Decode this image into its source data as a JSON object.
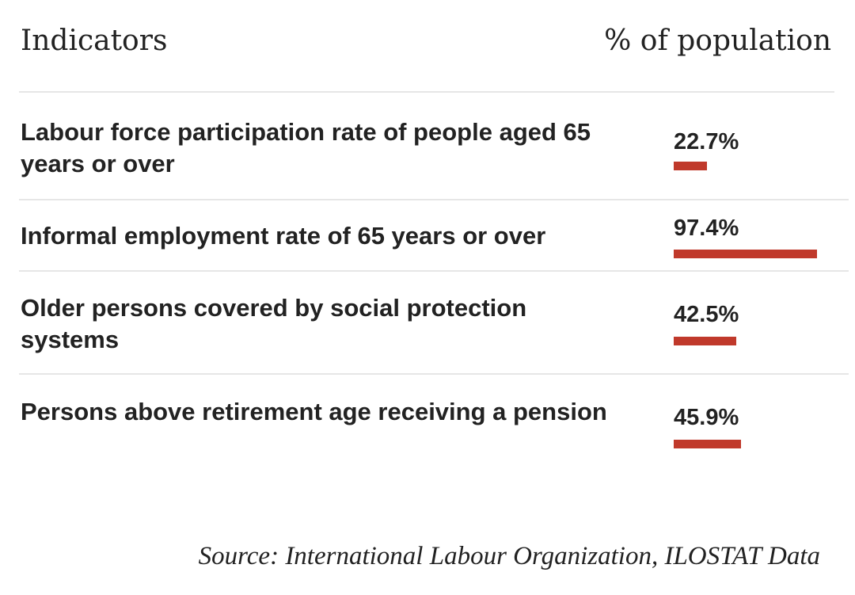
{
  "header": {
    "indicators_label": "Indicators",
    "value_label": "% of population"
  },
  "chart_data": {
    "type": "bar",
    "title": "",
    "xlabel": "% of population",
    "ylabel": "Indicators",
    "xlim": [
      0,
      100
    ],
    "bar_color": "#c0392b",
    "categories": [
      "Labour force participation rate of people aged 65 years or over",
      "Informal employment rate of 65 years or over",
      "Older persons covered by social protection systems",
      "Persons above retirement age receiving a pension"
    ],
    "values": [
      22.7,
      97.4,
      42.5,
      45.9
    ],
    "value_labels": [
      "22.7%",
      "97.4%",
      "42.5%",
      "45.9%"
    ]
  },
  "rows": [
    {
      "label": "Labour force participation rate of people aged 65 years or over",
      "value_text": "22.7%",
      "value": 22.7
    },
    {
      "label": "Informal employment rate of 65 years or over",
      "value_text": "97.4%",
      "value": 97.4
    },
    {
      "label": "Older persons covered by social protection systems",
      "value_text": "42.5%",
      "value": 42.5
    },
    {
      "label": "Persons above retirement age receiving a pension",
      "value_text": "45.9%",
      "value": 45.9
    }
  ],
  "footer": {
    "source": "Source: International Labour Organization, ILOSTAT Data"
  }
}
